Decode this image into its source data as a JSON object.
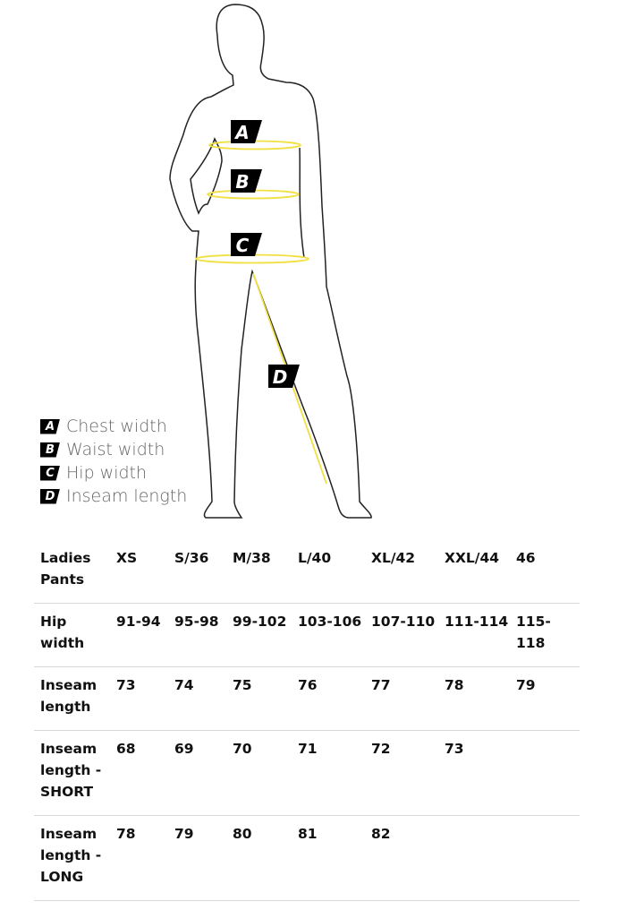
{
  "figure": {
    "labels": [
      "A",
      "B",
      "C",
      "D"
    ],
    "colors": {
      "outline": "#222222",
      "measure": "#f0e040",
      "badge": "#000000"
    }
  },
  "legend": [
    {
      "key": "A",
      "label": "Chest width"
    },
    {
      "key": "B",
      "label": "Waist width"
    },
    {
      "key": "C",
      "label": "Hip width"
    },
    {
      "key": "D",
      "label": "Inseam length"
    }
  ],
  "table": {
    "header": [
      "Ladies Pants",
      "XS",
      "S/36",
      "M/38",
      "L/40",
      "XL/42",
      "XXL/44",
      "46"
    ],
    "rows": [
      [
        "Hip width",
        "91-94",
        "95-98",
        "99-102",
        "103-106",
        "107-110",
        "111-114",
        "115-118"
      ],
      [
        "Inseam length",
        "73",
        "74",
        "75",
        "76",
        "77",
        "78",
        "79"
      ],
      [
        "Inseam length - SHORT",
        "68",
        "69",
        "70",
        "71",
        "72",
        "73",
        ""
      ],
      [
        "Inseam length - LONG",
        "78",
        "79",
        "80",
        "81",
        "82",
        "",
        ""
      ]
    ]
  }
}
